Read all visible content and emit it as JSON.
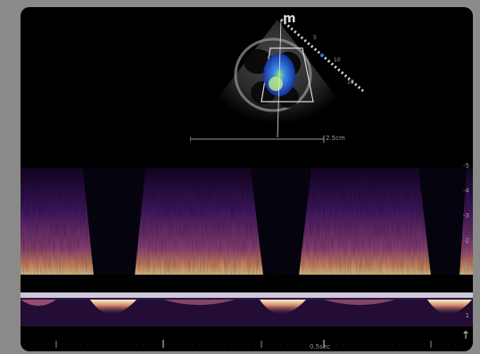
{
  "image": {
    "orientation_marker": "m",
    "sector_depth_labels": [
      "5",
      "10",
      "15"
    ],
    "top_scale_label": "2.5cm",
    "bottom_scale_label": "0.5sec",
    "velocity_scale_labels": [
      "-5",
      "-4",
      "-3",
      "-2",
      "-1",
      "1"
    ],
    "baseline_arrow": "↑",
    "colors": {
      "background": "#8a8b88",
      "screen": "#000000",
      "doppler_dark": "#2a0f4a",
      "doppler_mid": "#8a3a88",
      "doppler_bright": "#f4d59a",
      "color_flow_blue": "#2f6fe0",
      "color_flow_green": "#6fe07a"
    }
  }
}
